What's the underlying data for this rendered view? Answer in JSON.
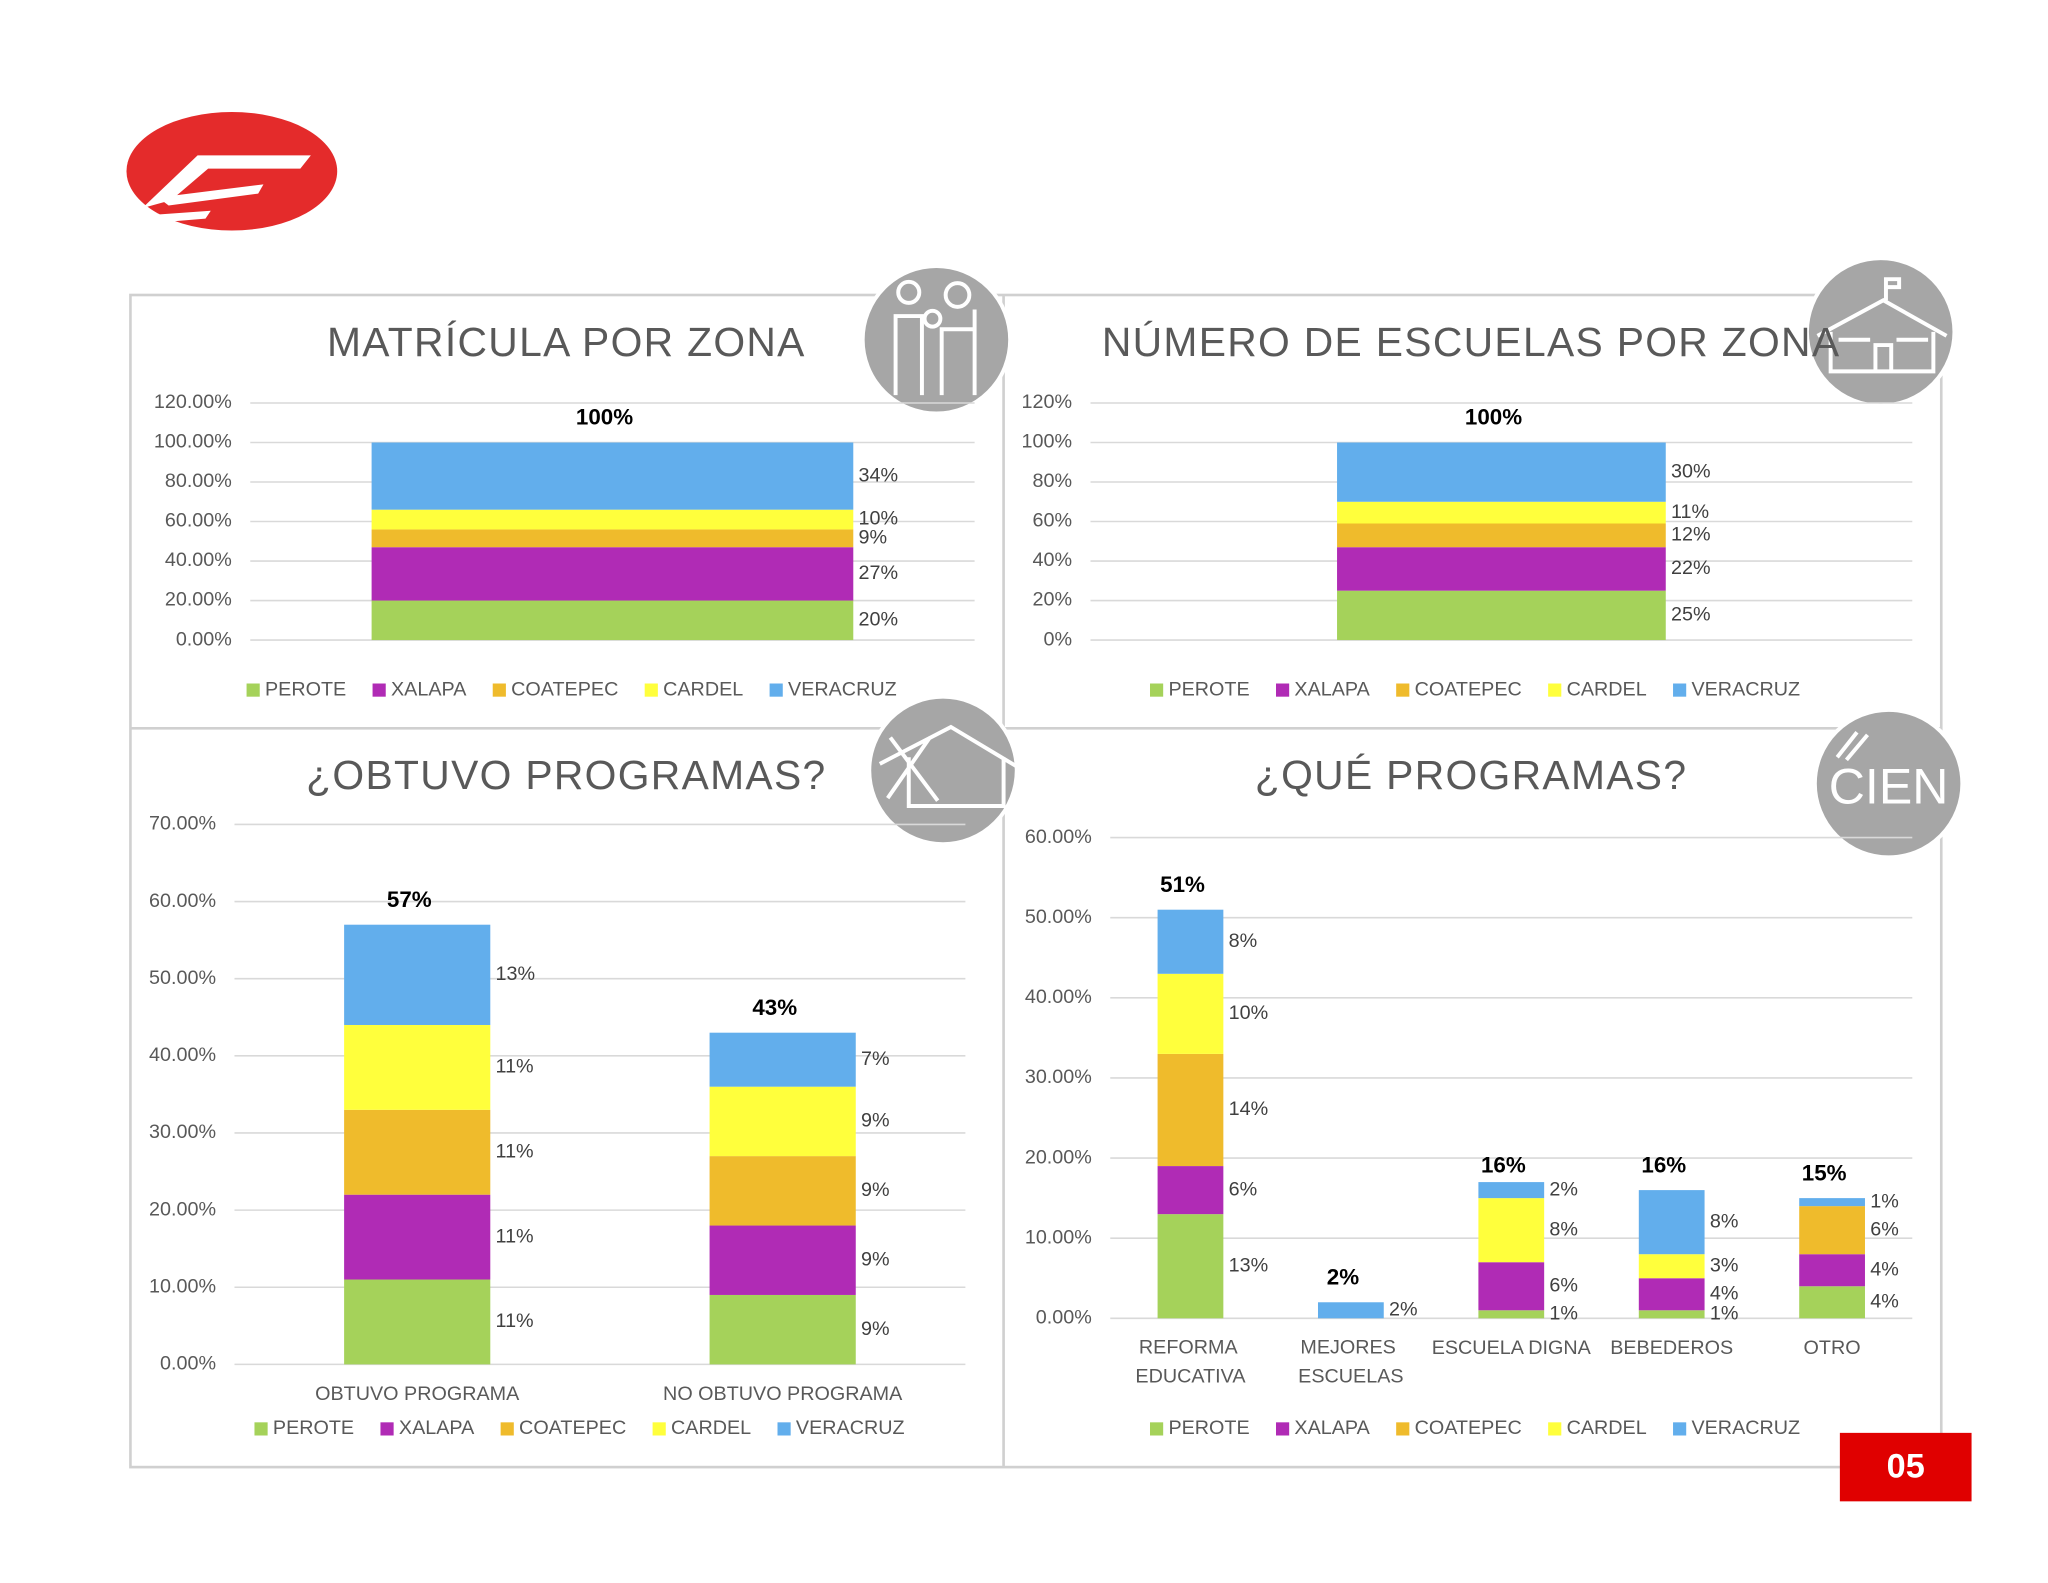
{
  "chart_data": [
    {
      "type": "bar",
      "stacked": true,
      "title": "MATRÍCULA POR ZONA",
      "categories": [
        null
      ],
      "series": [
        {
          "name": "PEROTE",
          "color": "#a5d25a",
          "values": [
            20
          ],
          "value_labels": [
            "20%"
          ]
        },
        {
          "name": "XALAPA",
          "color": "#b02bb5",
          "values": [
            27
          ],
          "value_labels": [
            "27%"
          ]
        },
        {
          "name": "COATEPEC",
          "color": "#efbb2c",
          "values": [
            9
          ],
          "value_labels": [
            "9%"
          ]
        },
        {
          "name": "CARDEL",
          "color": "#ffff3c",
          "values": [
            10
          ],
          "value_labels": [
            "10%"
          ]
        },
        {
          "name": "VERACRUZ",
          "color": "#62aeec",
          "values": [
            34
          ],
          "value_labels": [
            "34%"
          ]
        }
      ],
      "totals": [
        100
      ],
      "total_labels": [
        "100%"
      ],
      "ylim": [
        0,
        120
      ],
      "yticks": [
        {
          "value": 0,
          "label": "0.00%"
        },
        {
          "value": 20,
          "label": "20.00%"
        },
        {
          "value": 40,
          "label": "40.00%"
        },
        {
          "value": 60,
          "label": "60.00%"
        },
        {
          "value": 80,
          "label": "80.00%"
        },
        {
          "value": 100,
          "label": "100.00%"
        },
        {
          "value": 120,
          "label": "120.00%"
        }
      ],
      "grid": true,
      "legend": "bottom"
    },
    {
      "type": "bar",
      "stacked": true,
      "title": "NÚMERO DE ESCUELAS POR ZONA",
      "categories": [
        null
      ],
      "series": [
        {
          "name": "PEROTE",
          "color": "#a5d25a",
          "values": [
            25
          ],
          "value_labels": [
            "25%"
          ]
        },
        {
          "name": "XALAPA",
          "color": "#b02bb5",
          "values": [
            22
          ],
          "value_labels": [
            "22%"
          ]
        },
        {
          "name": "COATEPEC",
          "color": "#efbb2c",
          "values": [
            12
          ],
          "value_labels": [
            "12%"
          ]
        },
        {
          "name": "CARDEL",
          "color": "#ffff3c",
          "values": [
            11
          ],
          "value_labels": [
            "11%"
          ]
        },
        {
          "name": "VERACRUZ",
          "color": "#62aeec",
          "values": [
            30
          ],
          "value_labels": [
            "30%"
          ]
        }
      ],
      "totals": [
        100
      ],
      "total_labels": [
        "100%"
      ],
      "ylim": [
        0,
        120
      ],
      "yticks": [
        {
          "value": 0,
          "label": "0%"
        },
        {
          "value": 20,
          "label": "20%"
        },
        {
          "value": 40,
          "label": "40%"
        },
        {
          "value": 60,
          "label": "60%"
        },
        {
          "value": 80,
          "label": "80%"
        },
        {
          "value": 100,
          "label": "100%"
        },
        {
          "value": 120,
          "label": "120%"
        }
      ],
      "grid": true,
      "legend": "bottom"
    },
    {
      "type": "bar",
      "stacked": true,
      "title": "¿OBTUVO PROGRAMAS?",
      "categories": [
        "OBTUVO PROGRAMA",
        "NO OBTUVO PROGRAMA"
      ],
      "series": [
        {
          "name": "PEROTE",
          "color": "#a5d25a",
          "values": [
            11,
            9
          ],
          "value_labels": [
            "11%",
            "9%"
          ]
        },
        {
          "name": "XALAPA",
          "color": "#b02bb5",
          "values": [
            11,
            9
          ],
          "value_labels": [
            "11%",
            "9%"
          ]
        },
        {
          "name": "COATEPEC",
          "color": "#efbb2c",
          "values": [
            11,
            9
          ],
          "value_labels": [
            "11%",
            "9%"
          ]
        },
        {
          "name": "CARDEL",
          "color": "#ffff3c",
          "values": [
            11,
            9
          ],
          "value_labels": [
            "11%",
            "9%"
          ]
        },
        {
          "name": "VERACRUZ",
          "color": "#62aeec",
          "values": [
            13,
            7
          ],
          "value_labels": [
            "13%",
            "7%"
          ]
        }
      ],
      "totals": [
        57,
        43
      ],
      "total_labels": [
        "57%",
        "43%"
      ],
      "ylim": [
        0,
        70
      ],
      "yticks": [
        {
          "value": 0,
          "label": "0.00%"
        },
        {
          "value": 10,
          "label": "10.00%"
        },
        {
          "value": 20,
          "label": "20.00%"
        },
        {
          "value": 30,
          "label": "30.00%"
        },
        {
          "value": 40,
          "label": "40.00%"
        },
        {
          "value": 50,
          "label": "50.00%"
        },
        {
          "value": 60,
          "label": "60.00%"
        },
        {
          "value": 70,
          "label": "70.00%"
        }
      ],
      "grid": true,
      "legend": "bottom"
    },
    {
      "type": "bar",
      "stacked": true,
      "title": "¿QUÉ PROGRAMAS?",
      "categories": [
        "REFORMA EDUCATIVA",
        "MEJORES ESCUELAS",
        "ESCUELA DIGNA",
        "BEBEDEROS",
        "OTRO"
      ],
      "series": [
        {
          "name": "PEROTE",
          "color": "#a5d25a",
          "values": [
            13,
            null,
            1,
            1,
            4
          ],
          "value_labels": [
            "13%",
            null,
            "1%",
            "1%",
            "4%"
          ]
        },
        {
          "name": "XALAPA",
          "color": "#b02bb5",
          "values": [
            6,
            null,
            6,
            4,
            4
          ],
          "value_labels": [
            "6%",
            null,
            "6%",
            "4%",
            "4%"
          ]
        },
        {
          "name": "COATEPEC",
          "color": "#efbb2c",
          "values": [
            14,
            null,
            null,
            null,
            6
          ],
          "value_labels": [
            "14%",
            null,
            null,
            null,
            "6%"
          ]
        },
        {
          "name": "CARDEL",
          "color": "#ffff3c",
          "values": [
            10,
            null,
            8,
            3,
            null
          ],
          "value_labels": [
            "10%",
            null,
            "8%",
            "3%",
            null
          ]
        },
        {
          "name": "VERACRUZ",
          "color": "#62aeec",
          "values": [
            8,
            2,
            2,
            8,
            1
          ],
          "value_labels": [
            "8%",
            "2%",
            "2%",
            "8%",
            "1%"
          ]
        }
      ],
      "totals": [
        51,
        2,
        16,
        16,
        15
      ],
      "total_labels": [
        "51%",
        "2%",
        "16%",
        "16%",
        "15%"
      ],
      "ylim": [
        0,
        60
      ],
      "yticks": [
        {
          "value": 0,
          "label": "0.00%"
        },
        {
          "value": 10,
          "label": "10.00%"
        },
        {
          "value": 20,
          "label": "20.00%"
        },
        {
          "value": 30,
          "label": "30.00%"
        },
        {
          "value": 40,
          "label": "40.00%"
        },
        {
          "value": 50,
          "label": "50.00%"
        },
        {
          "value": 60,
          "label": "60.00%"
        }
      ],
      "grid": true,
      "legend": "bottom"
    }
  ],
  "icon_text": "CIEN",
  "page_number": "05"
}
